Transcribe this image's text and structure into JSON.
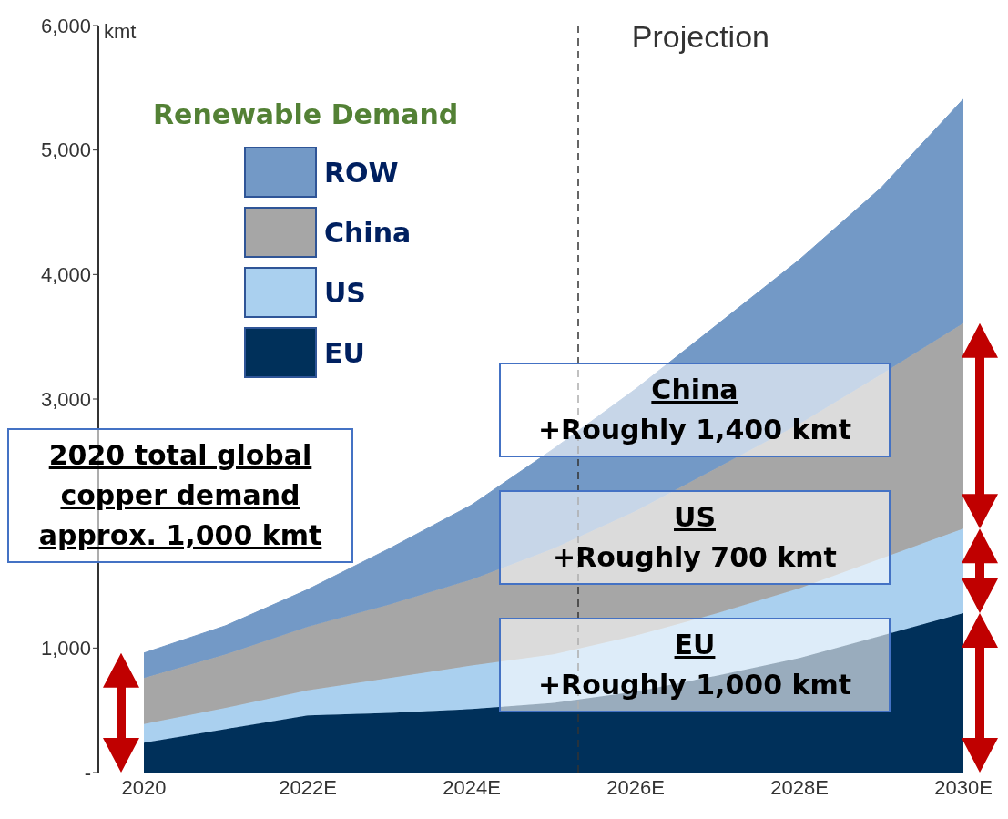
{
  "chart_data": {
    "type": "area",
    "stacked": true,
    "ylabel": "kmt",
    "legend_title": "Renewable Demand",
    "legend": "top left",
    "x": [
      2020,
      2021,
      2022,
      2023,
      2024,
      2025,
      2026,
      2027,
      2028,
      2029,
      2030
    ],
    "xlim": [
      2020,
      2030
    ],
    "xticks": [
      {
        "value": 2020,
        "label": "2020"
      },
      {
        "value": 2022,
        "label": "2022E"
      },
      {
        "value": 2024,
        "label": "2024E"
      },
      {
        "value": 2026,
        "label": "2026E"
      },
      {
        "value": 2028,
        "label": "2028E"
      },
      {
        "value": 2030,
        "label": "2030E"
      }
    ],
    "ylim": [
      0,
      6000
    ],
    "yticks": [
      {
        "value": 0,
        "label": "-"
      },
      {
        "value": 1000,
        "label": "1,000"
      },
      {
        "value": 3000,
        "label": "3,000"
      },
      {
        "value": 4000,
        "label": "4,000"
      },
      {
        "value": 5000,
        "label": "5,000"
      },
      {
        "value": 6000,
        "label": "6,000"
      }
    ],
    "series": [
      {
        "name": "EU",
        "color": "#00305a",
        "values": [
          240,
          350,
          460,
          480,
          510,
          560,
          650,
          780,
          920,
          1100,
          1280
        ]
      },
      {
        "name": "US",
        "color": "#aad0ef",
        "values": [
          150,
          170,
          200,
          280,
          350,
          390,
          450,
          500,
          560,
          620,
          680
        ]
      },
      {
        "name": "China",
        "color": "#a6a6a6",
        "values": [
          370,
          430,
          510,
          590,
          690,
          850,
          1000,
          1170,
          1320,
          1480,
          1650
        ]
      },
      {
        "name": "ROW",
        "color": "#7399c6",
        "values": [
          200,
          230,
          300,
          450,
          600,
          800,
          980,
          1150,
          1320,
          1500,
          1800
        ]
      }
    ],
    "ref_lines": [
      {
        "axis": "x",
        "value": 2025.3,
        "label": "Projection",
        "line_style": "dashed",
        "color": "#333333"
      }
    ],
    "annotations": [
      "2020 total global\ncopper demand\napprox. 1,000 kmt",
      "China\n+Roughly 1,400 kmt",
      "US\n+Roughly 700 kmt",
      "EU\n+Roughly 1,000 kmt"
    ]
  }
}
